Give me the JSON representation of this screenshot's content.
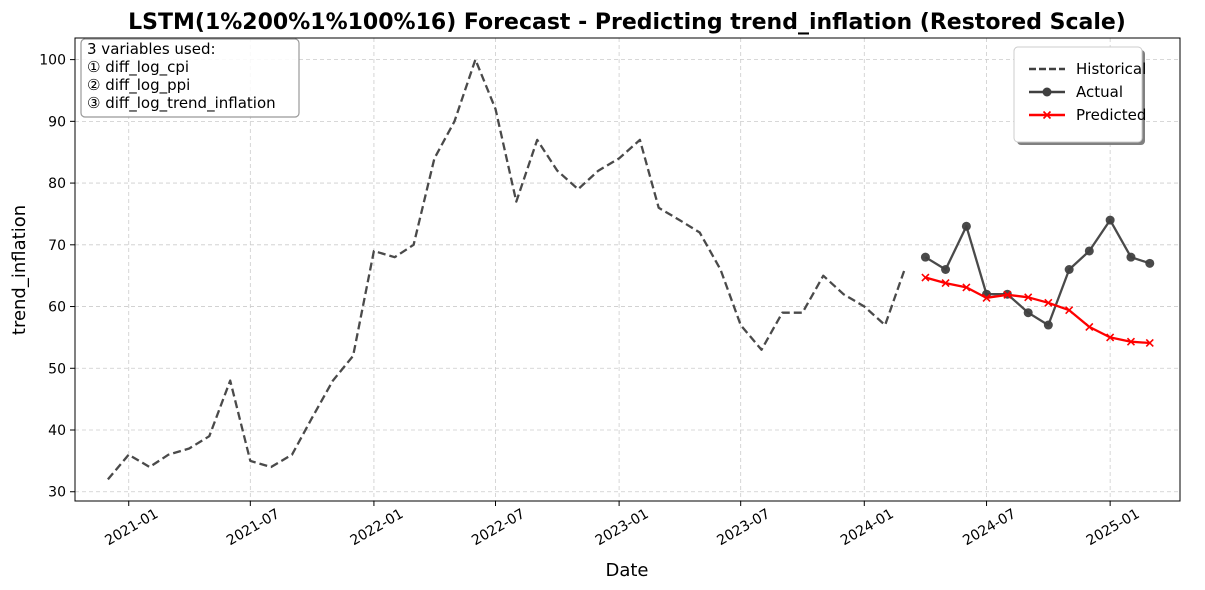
{
  "chart_data": {
    "type": "line",
    "title": "LSTM(1%200%1%100%16) Forecast - Predicting trend_inflation (Restored Scale)",
    "xlabel": "Date",
    "ylabel": "trend_inflation",
    "ylim": [
      28.5,
      103.5
    ],
    "y_ticks": [
      30,
      40,
      50,
      60,
      70,
      80,
      90,
      100
    ],
    "x_range": [
      "2020-10-13",
      "2025-04-15"
    ],
    "x_ticks": [
      "2021-01",
      "2021-07",
      "2022-01",
      "2022-07",
      "2023-01",
      "2023-07",
      "2024-01",
      "2024-07",
      "2025-01"
    ],
    "grid": true,
    "legend_position": "top-right",
    "annotation": {
      "lines": [
        "3 variables used:",
        "① diff_log_cpi",
        "② diff_log_ppi",
        "③ diff_log_trend_inflation"
      ]
    },
    "series": [
      {
        "name": "Historical",
        "style": "dashed",
        "color": "#404040",
        "x": [
          "2020-12",
          "2021-01",
          "2021-02",
          "2021-03",
          "2021-04",
          "2021-05",
          "2021-06",
          "2021-07",
          "2021-08",
          "2021-09",
          "2021-10",
          "2021-11",
          "2021-12",
          "2022-01",
          "2022-02",
          "2022-03",
          "2022-04",
          "2022-05",
          "2022-06",
          "2022-07",
          "2022-08",
          "2022-09",
          "2022-10",
          "2022-11",
          "2022-12",
          "2023-01",
          "2023-02",
          "2023-03",
          "2023-04",
          "2023-05",
          "2023-06",
          "2023-07",
          "2023-08",
          "2023-09",
          "2023-10",
          "2023-11",
          "2023-12",
          "2024-01",
          "2024-02",
          "2024-03"
        ],
        "values": [
          32,
          36,
          34,
          36,
          37,
          39,
          48,
          35,
          34,
          36,
          42,
          48,
          52,
          69,
          68,
          70,
          84,
          90,
          100,
          92,
          77,
          87,
          82,
          79,
          82,
          84,
          87,
          76,
          74,
          72,
          66,
          57,
          53,
          59,
          59,
          65,
          62,
          60,
          57,
          66
        ]
      },
      {
        "name": "Actual",
        "style": "solid-circle",
        "color": "#404040",
        "x": [
          "2024-04",
          "2024-05",
          "2024-06",
          "2024-07",
          "2024-08",
          "2024-09",
          "2024-10",
          "2024-11",
          "2024-12",
          "2025-01",
          "2025-02",
          "2025-03"
        ],
        "values": [
          68,
          66,
          73,
          62,
          62,
          59,
          57,
          66,
          69,
          74,
          68,
          67
        ]
      },
      {
        "name": "Predicted",
        "style": "solid-x",
        "color": "#ff0000",
        "x": [
          "2024-04",
          "2024-05",
          "2024-06",
          "2024-07",
          "2024-08",
          "2024-09",
          "2024-10",
          "2024-11",
          "2024-12",
          "2025-01",
          "2025-02",
          "2025-03"
        ],
        "values": [
          64.7,
          63.8,
          63.1,
          61.4,
          61.9,
          61.5,
          60.6,
          59.4,
          56.7,
          55.0,
          54.3,
          54.1
        ]
      }
    ]
  }
}
